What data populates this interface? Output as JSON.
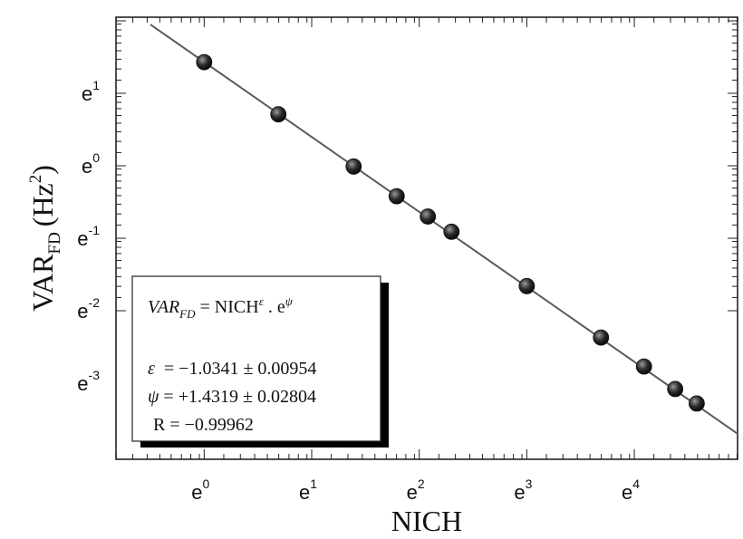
{
  "chart_data": {
    "type": "scatter",
    "x_scale": "ln",
    "y_scale": "ln",
    "xlabel": "NICH",
    "ylabel": "VAR",
    "ylabel_sub": "FD",
    "ylabel_unit": "(Hz",
    "ylabel_unit_sup": "2",
    "ylabel_unit_close": ")",
    "x_ticks": [
      {
        "base": "e",
        "exp": "0",
        "value": 0
      },
      {
        "base": "e",
        "exp": "1",
        "value": 1
      },
      {
        "base": "e",
        "exp": "2",
        "value": 2
      },
      {
        "base": "e",
        "exp": "3",
        "value": 3
      },
      {
        "base": "e",
        "exp": "4",
        "value": 4
      }
    ],
    "y_ticks": [
      {
        "base": "e",
        "exp": "1",
        "value": 1
      },
      {
        "base": "e",
        "exp": "0",
        "value": 0
      },
      {
        "base": "e",
        "exp": "-1",
        "value": -1
      },
      {
        "base": "e",
        "exp": "-2",
        "value": -2
      },
      {
        "base": "e",
        "exp": "-3",
        "value": -3
      }
    ],
    "xlim_ln": [
      -0.82,
      4.96
    ],
    "ylim_ln": [
      -4.05,
      2.05
    ],
    "points_ln": [
      {
        "x": 0.0,
        "y": 1.43
      },
      {
        "x": 0.69,
        "y": 0.71
      },
      {
        "x": 1.39,
        "y": -0.01
      },
      {
        "x": 1.79,
        "y": -0.42
      },
      {
        "x": 2.08,
        "y": -0.7
      },
      {
        "x": 2.3,
        "y": -0.91
      },
      {
        "x": 3.0,
        "y": -1.66
      },
      {
        "x": 3.69,
        "y": -2.37
      },
      {
        "x": 4.09,
        "y": -2.77
      },
      {
        "x": 4.38,
        "y": -3.08
      },
      {
        "x": 4.58,
        "y": -3.28
      }
    ],
    "fit": {
      "epsilon": -1.0341,
      "psi": 1.4319
    },
    "legend": {
      "eq_lhs": "VAR",
      "eq_lhs_sub": "FD",
      "eq_eq": " = NICH",
      "eq_exp1": "ε",
      "eq_dot": " . e",
      "eq_exp2": "ψ",
      "eps_sym": "ε",
      "eps_val": "  = −1.0341 ± 0.00954",
      "psi_sym": "ψ",
      "psi_val": " = +1.4319 ± 0.02804",
      "r_line": "R = −0.99962"
    },
    "grid": false,
    "colors": {
      "line": "#5a5a5a",
      "marker": "#2b2b2b",
      "axis": "#222222"
    }
  }
}
